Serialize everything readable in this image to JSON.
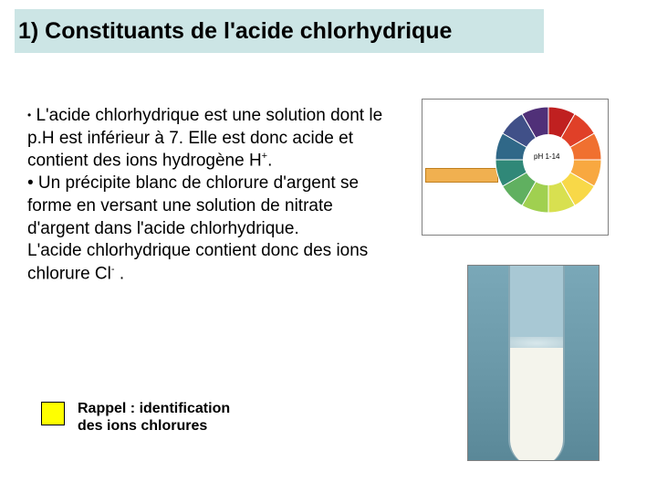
{
  "title": "1) Constituants de l'acide chlorhydrique",
  "body": {
    "p1_a": "L'acide chlorhydrique est une solution dont le p.H est inférieur à 7. Elle est donc acide et contient des ions hydrogène H",
    "p1_sup": "+",
    "p1_b": ".",
    "p2": "• Un précipite blanc de chlorure d'argent se forme en versant une solution de nitrate d'argent dans l'acide chlorhydrique.",
    "p3_a": " L'acide chlorhydrique contient donc des ions chlorure Cl",
    "p3_sup": "-",
    "p3_b": " ."
  },
  "callout": {
    "line1": "Rappel : identification",
    "line2": "des ions chlorures"
  },
  "images": {
    "ph_wheel": {
      "label": "pH 1-14",
      "strip_color": "#f0b050",
      "segments": [
        "#c02020",
        "#e04028",
        "#f07030",
        "#f8a840",
        "#f8d848",
        "#d8e050",
        "#a0d050",
        "#60b060",
        "#308878",
        "#306888",
        "#405088",
        "#503078"
      ]
    },
    "test_tube": {
      "background_gradient": [
        "#7aa8b8",
        "#5a8898"
      ],
      "tube_color": "#a8c8d4",
      "precipitate_color": "#f4f4ec"
    }
  },
  "colors": {
    "title_bg": "#cce5e5",
    "callout_bg": "#ffff00",
    "page_bg": "#ffffff",
    "text": "#000000"
  }
}
